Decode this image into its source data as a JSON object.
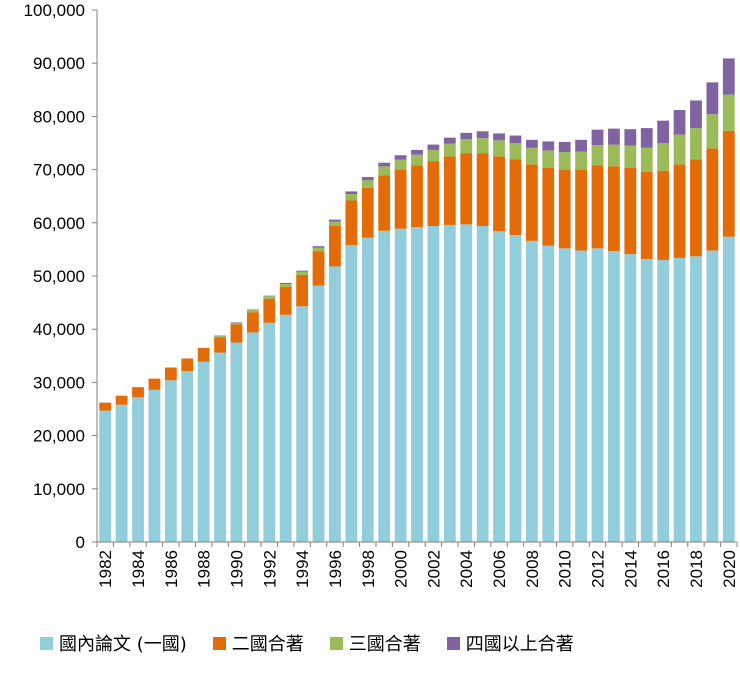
{
  "colors": {
    "domestic": "#92CDDC",
    "two": "#E36C09",
    "three": "#9BBB59",
    "four": "#8064A2",
    "axis": "#808080"
  },
  "chart_data": {
    "type": "bar",
    "stacked": true,
    "x_tick_labels": [
      "1982",
      "1984",
      "1986",
      "1988",
      "1990",
      "1992",
      "1994",
      "1996",
      "1998",
      "2000",
      "2002",
      "2004",
      "2006",
      "2008",
      "2010",
      "2012",
      "2014",
      "2016",
      "2018",
      "2020"
    ],
    "y_tick_labels": [
      "0",
      "10,000",
      "20,000",
      "30,000",
      "40,000",
      "50,000",
      "60,000",
      "70,000",
      "80,000",
      "90,000",
      "100,000"
    ],
    "ylim": [
      0,
      100000
    ],
    "legend_position": "bottom",
    "categories": [
      1982,
      1983,
      1984,
      1985,
      1986,
      1987,
      1988,
      1989,
      1990,
      1991,
      1992,
      1993,
      1994,
      1995,
      1996,
      1997,
      1998,
      1999,
      2000,
      2001,
      2002,
      2003,
      2004,
      2005,
      2006,
      2007,
      2008,
      2009,
      2010,
      2011,
      2012,
      2013,
      2014,
      2015,
      2016,
      2017,
      2018,
      2019,
      2020
    ],
    "series": [
      {
        "name": "國內論文 (一國)",
        "color_key": "domestic",
        "values": [
          24700,
          25800,
          27200,
          28600,
          30400,
          32100,
          33900,
          35600,
          37500,
          39400,
          41200,
          42700,
          44300,
          48200,
          51800,
          55800,
          57200,
          58500,
          58900,
          59200,
          59400,
          59600,
          59700,
          59400,
          58400,
          57700,
          56600,
          55700,
          55200,
          54800,
          55200,
          54700,
          54100,
          53200,
          53000,
          53400,
          53700,
          54800,
          57400
        ]
      },
      {
        "name": "二國合著",
        "color_key": "two",
        "values": [
          1500,
          1700,
          1900,
          2100,
          2400,
          2400,
          2600,
          2900,
          3400,
          3800,
          4500,
          5300,
          5900,
          6400,
          7600,
          8400,
          9400,
          10400,
          11100,
          11600,
          12200,
          12900,
          13400,
          13700,
          14100,
          14200,
          14400,
          14600,
          14800,
          15200,
          15600,
          15900,
          16200,
          16400,
          16800,
          17600,
          18200,
          19200,
          19900
        ]
      },
      {
        "name": "三國合著",
        "color_key": "three",
        "values": [
          0,
          0,
          0,
          0,
          0,
          0,
          0,
          200,
          300,
          400,
          500,
          500,
          600,
          700,
          800,
          1200,
          1400,
          1700,
          1900,
          2000,
          2100,
          2400,
          2600,
          2800,
          3000,
          3100,
          3100,
          3300,
          3300,
          3400,
          3800,
          4100,
          4200,
          4500,
          5200,
          5600,
          5900,
          6400,
          6800
        ]
      },
      {
        "name": "四國以上合著",
        "color_key": "four",
        "values": [
          0,
          0,
          0,
          0,
          0,
          0,
          0,
          100,
          100,
          100,
          100,
          200,
          200,
          300,
          400,
          500,
          600,
          700,
          800,
          900,
          1000,
          1100,
          1200,
          1300,
          1300,
          1400,
          1500,
          1700,
          1900,
          2200,
          2900,
          3000,
          3100,
          3700,
          4200,
          4600,
          5200,
          6000,
          6800
        ]
      }
    ]
  }
}
